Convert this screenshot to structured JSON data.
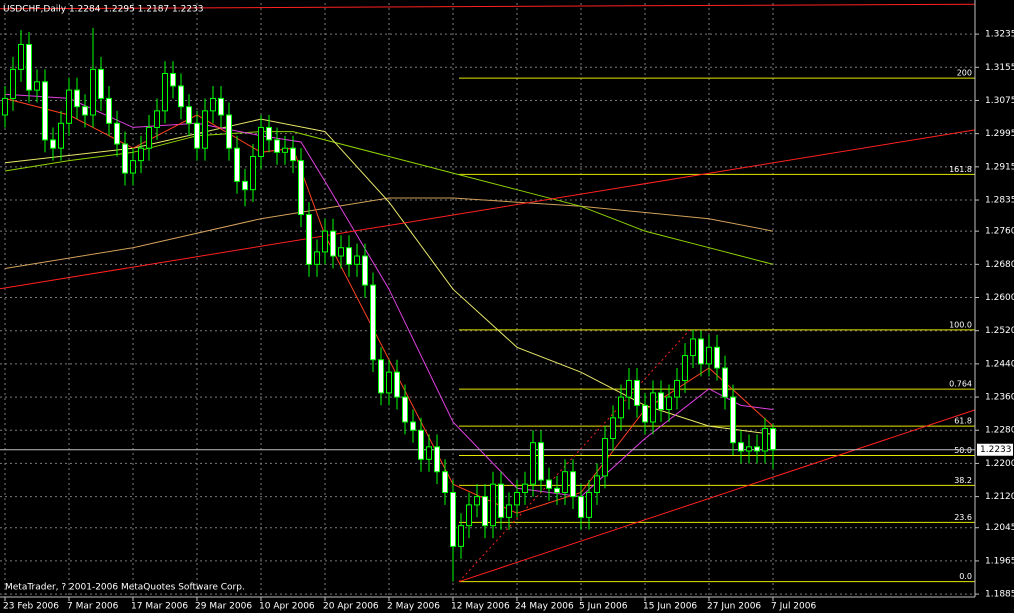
{
  "chart_data": {
    "type": "candlestick",
    "title": "USDCHF,Daily  1.2284 1.2295 1.2187 1.2233",
    "footer": "MetaTrader, ? 2001-2006 MetaQuotes Software Corp.",
    "categories": [
      "23 Feb 2006",
      null,
      null,
      null,
      null,
      null,
      null,
      null,
      "7 Mar 2006",
      null,
      null,
      null,
      null,
      null,
      null,
      null,
      "17 Mar 2006",
      null,
      null,
      null,
      null,
      null,
      null,
      null,
      "29 Mar 2006",
      null,
      null,
      null,
      null,
      null,
      null,
      null,
      "10 Apr 2006",
      null,
      null,
      null,
      null,
      null,
      null,
      null,
      "20 Apr 2006",
      null,
      null,
      null,
      null,
      null,
      null,
      null,
      "2 May 2006",
      null,
      null,
      null,
      null,
      null,
      null,
      null,
      "12 May 2006",
      null,
      null,
      null,
      null,
      null,
      null,
      null,
      "24 May 2006",
      null,
      null,
      null,
      null,
      null,
      null,
      null,
      "5 Jun 2006",
      null,
      null,
      null,
      null,
      null,
      null,
      null,
      "15 Jun 2006",
      null,
      null,
      null,
      null,
      null,
      null,
      null,
      "27 Jun 2006",
      null,
      null,
      null,
      null,
      null,
      null,
      null,
      "7 Jul 2006"
    ],
    "open": [
      1.304,
      1.308,
      1.315,
      1.321,
      1.31,
      1.312,
      1.298,
      1.296,
      1.302,
      1.31,
      1.306,
      1.304,
      1.315,
      1.308,
      1.302,
      1.297,
      1.29,
      1.293,
      1.296,
      1.301,
      1.305,
      1.314,
      1.311,
      1.306,
      1.302,
      1.296,
      1.305,
      1.308,
      1.304,
      1.296,
      1.288,
      1.286,
      1.294,
      1.301,
      1.298,
      1.295,
      1.296,
      1.293,
      1.28,
      1.268,
      1.271,
      1.276,
      1.27,
      1.272,
      1.268,
      1.27,
      1.263,
      1.245,
      1.237,
      1.242,
      1.236,
      1.23,
      1.228,
      1.221,
      1.224,
      1.218,
      1.213,
      1.2,
      1.205,
      1.21,
      1.212,
      1.205,
      1.215,
      1.207,
      1.21,
      1.213,
      1.215,
      1.225,
      1.216,
      1.214,
      1.213,
      1.218,
      1.212,
      1.207,
      1.213,
      1.217,
      1.226,
      1.231,
      1.236,
      1.24,
      1.234,
      1.23,
      1.237,
      1.233,
      1.236,
      1.24,
      1.246,
      1.25,
      1.244,
      1.248,
      1.243,
      1.236,
      1.225,
      1.223,
      1.224,
      1.223,
      1.2284
    ],
    "high": [
      1.311,
      1.318,
      1.3245,
      1.324,
      1.315,
      1.315,
      1.301,
      1.305,
      1.313,
      1.313,
      1.309,
      1.325,
      1.318,
      1.311,
      1.305,
      1.3,
      1.296,
      1.299,
      1.304,
      1.308,
      1.317,
      1.317,
      1.314,
      1.309,
      1.305,
      1.308,
      1.311,
      1.311,
      1.307,
      1.299,
      1.291,
      1.297,
      1.304,
      1.304,
      1.301,
      1.299,
      1.299,
      1.296,
      1.283,
      1.274,
      1.279,
      1.279,
      1.275,
      1.275,
      1.273,
      1.273,
      1.266,
      1.248,
      1.245,
      1.245,
      1.239,
      1.233,
      1.231,
      1.227,
      1.227,
      1.221,
      1.216,
      1.208,
      1.213,
      1.215,
      1.215,
      1.218,
      1.218,
      1.213,
      1.216,
      1.218,
      1.228,
      1.228,
      1.219,
      1.217,
      1.221,
      1.221,
      1.215,
      1.216,
      1.22,
      1.229,
      1.234,
      1.239,
      1.243,
      1.243,
      1.237,
      1.24,
      1.24,
      1.239,
      1.243,
      1.249,
      1.2522,
      1.252,
      1.251,
      1.251,
      1.246,
      1.239,
      1.228,
      1.227,
      1.227,
      1.231,
      1.2295
    ],
    "low": [
      1.301,
      1.305,
      1.312,
      1.307,
      1.307,
      1.295,
      1.293,
      1.293,
      1.299,
      1.303,
      1.301,
      1.301,
      1.305,
      1.299,
      1.294,
      1.287,
      1.287,
      1.29,
      1.293,
      1.298,
      1.302,
      1.308,
      1.303,
      1.299,
      1.293,
      1.293,
      1.302,
      1.301,
      1.293,
      1.285,
      1.282,
      1.283,
      1.291,
      1.295,
      1.292,
      1.292,
      1.29,
      1.277,
      1.265,
      1.265,
      1.268,
      1.267,
      1.267,
      1.265,
      1.265,
      1.26,
      1.242,
      1.234,
      1.234,
      1.233,
      1.227,
      1.225,
      1.218,
      1.218,
      1.215,
      1.21,
      1.1915,
      1.197,
      1.202,
      1.207,
      1.202,
      1.202,
      1.204,
      1.204,
      1.207,
      1.21,
      1.212,
      1.213,
      1.211,
      1.21,
      1.21,
      1.209,
      1.204,
      1.204,
      1.21,
      1.214,
      1.223,
      1.228,
      1.233,
      1.231,
      1.227,
      1.227,
      1.23,
      1.23,
      1.233,
      1.237,
      1.243,
      1.241,
      1.241,
      1.24,
      1.233,
      1.222,
      1.22,
      1.22,
      1.22,
      1.22,
      1.2187
    ],
    "close": [
      1.308,
      1.315,
      1.321,
      1.31,
      1.312,
      1.298,
      1.296,
      1.302,
      1.31,
      1.306,
      1.304,
      1.315,
      1.308,
      1.302,
      1.297,
      1.29,
      1.293,
      1.296,
      1.301,
      1.305,
      1.314,
      1.311,
      1.306,
      1.302,
      1.296,
      1.305,
      1.308,
      1.304,
      1.296,
      1.288,
      1.286,
      1.294,
      1.301,
      1.298,
      1.295,
      1.296,
      1.293,
      1.28,
      1.268,
      1.271,
      1.276,
      1.27,
      1.272,
      1.268,
      1.27,
      1.263,
      1.245,
      1.237,
      1.242,
      1.236,
      1.23,
      1.228,
      1.221,
      1.224,
      1.218,
      1.213,
      1.2,
      1.205,
      1.21,
      1.212,
      1.205,
      1.215,
      1.207,
      1.21,
      1.213,
      1.215,
      1.225,
      1.216,
      1.214,
      1.213,
      1.218,
      1.212,
      1.207,
      1.213,
      1.217,
      1.226,
      1.231,
      1.236,
      1.24,
      1.234,
      1.23,
      1.237,
      1.233,
      1.236,
      1.24,
      1.246,
      1.25,
      1.244,
      1.248,
      1.243,
      1.236,
      1.225,
      1.223,
      1.224,
      1.223,
      1.2284,
      1.2233
    ],
    "colors": {
      "background": "#000000",
      "candle": "#00ff00",
      "bull_body": "#000000",
      "bear_body": "#ffffff",
      "grid": "#7a7a7a",
      "axis": "#c0c0c0",
      "fibonacci": "#e6e600",
      "current_price": "#c0c0c0"
    },
    "xlim": [
      -0.625,
      121.25
    ],
    "ylim": [
      1.1878,
      1.331
    ],
    "yticks": [
      1.3235,
      1.3155,
      1.3075,
      1.2995,
      1.2915,
      1.2835,
      {
        "value": 1.276,
        "label": "1.2760"
      },
      {
        "value": 1.268,
        "label": "1.2680"
      },
      {
        "value": 1.26,
        "label": "1.2600"
      },
      {
        "value": 1.252,
        "label": "1.2520"
      },
      {
        "value": 1.244,
        "label": "1.2440"
      },
      {
        "value": 1.236,
        "label": "1.2360"
      },
      {
        "value": 1.228,
        "label": "1.2280"
      },
      {
        "value": 1.22,
        "label": "1.2200"
      },
      {
        "value": 1.212,
        "label": "1.2120"
      },
      1.2045,
      1.1965,
      1.1885
    ],
    "grid": true,
    "moving_averages": [
      {
        "color": "#d2a05a",
        "x": [
          0,
          16,
          32,
          48,
          56,
          72,
          88,
          96
        ],
        "values": [
          1.267,
          1.272,
          1.279,
          1.284,
          1.284,
          1.282,
          1.279,
          1.276
        ]
      },
      {
        "color": "#8fd400",
        "x": [
          0,
          8,
          16,
          24,
          32,
          36,
          48,
          56,
          64,
          72,
          80,
          88,
          96
        ],
        "values": [
          1.2905,
          1.293,
          1.295,
          1.299,
          1.3,
          1.3,
          1.294,
          1.29,
          1.286,
          1.282,
          1.276,
          1.272,
          1.268
        ]
      },
      {
        "color": "#e8e86a",
        "x": [
          0,
          16,
          32,
          40,
          48,
          56,
          64,
          72,
          80,
          88,
          96
        ],
        "values": [
          1.2925,
          1.296,
          1.303,
          1.3,
          1.283,
          1.262,
          1.248,
          1.242,
          1.234,
          1.229,
          1.227
        ]
      },
      {
        "color": "#e040e0",
        "x": [
          0,
          8,
          16,
          24,
          32,
          37,
          40,
          48,
          56,
          64,
          72,
          80,
          88,
          92,
          96
        ],
        "values": [
          1.309,
          1.308,
          1.301,
          1.302,
          1.299,
          1.2975,
          1.288,
          1.262,
          1.23,
          1.214,
          1.212,
          1.226,
          1.238,
          1.234,
          1.233
        ]
      },
      {
        "color": "#ff4020",
        "x": [
          0,
          8,
          16,
          24,
          32,
          36,
          40,
          48,
          56,
          64,
          72,
          80,
          88,
          96
        ],
        "values": [
          1.308,
          1.304,
          1.296,
          1.304,
          1.295,
          1.296,
          1.275,
          1.245,
          1.215,
          1.208,
          1.213,
          1.233,
          1.243,
          1.229
        ]
      }
    ],
    "trend_lines": [
      {
        "color": "#ff2020",
        "dashed": false,
        "x": [
          -0.625,
          121.25
        ],
        "values": [
          1.3296,
          1.3307
        ]
      },
      {
        "color": "#ff2020",
        "dashed": false,
        "x": [
          -0.625,
          121.25
        ],
        "values": [
          1.2621,
          1.3004
        ]
      },
      {
        "color": "#ff2020",
        "dashed": false,
        "x": [
          56.75,
          121.25
        ],
        "values": [
          1.1915,
          1.2329
        ]
      },
      {
        "color": "#ff2020",
        "dashed": true,
        "x": [
          56.75,
          85.6
        ],
        "values": [
          1.1915,
          1.2522
        ]
      }
    ],
    "fibonacci": {
      "x_start": 56.75,
      "levels": [
        {
          "value": 1.3129,
          "label": "200"
        },
        {
          "value": 1.2897,
          "label": "161.8"
        },
        {
          "value": 1.2522,
          "label": "100.0"
        },
        {
          "value": 1.2379,
          "label": "0.764"
        },
        {
          "value": 1.229,
          "label": "61.8"
        },
        {
          "value": 1.2219,
          "label": "50.0"
        },
        {
          "value": 1.2147,
          "label": "38.2"
        },
        {
          "value": 1.2058,
          "label": "23.6"
        },
        {
          "value": 1.1915,
          "label": "0.0"
        }
      ]
    },
    "current_price": 1.2233
  }
}
